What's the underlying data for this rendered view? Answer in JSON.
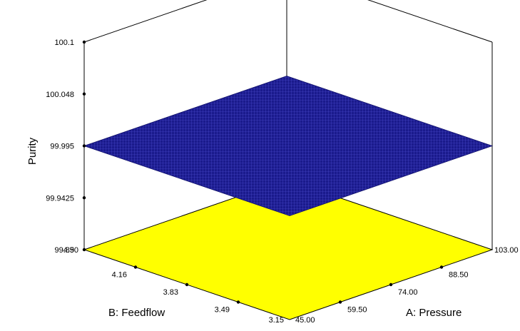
{
  "chart_data": {
    "type": "surface3d",
    "title": "",
    "zlabel": "Purity",
    "xlabel": "A: Pressure",
    "ylabel": "B: Feedflow",
    "x_ticks": [
      "45.00",
      "59.50",
      "74.00",
      "88.50",
      "103.00"
    ],
    "y_ticks": [
      "3.15",
      "3.49",
      "3.83",
      "4.16",
      "4.50"
    ],
    "z_ticks": [
      "99.89",
      "99.9425",
      "99.995",
      "100.048",
      "100.1"
    ],
    "xlim": [
      45.0,
      103.0
    ],
    "ylim": [
      3.15,
      4.5
    ],
    "zlim": [
      99.89,
      100.1
    ],
    "surface": {
      "x": [
        45.0,
        103.0
      ],
      "y": [
        3.15,
        4.5
      ],
      "z": [
        [
          99.995,
          99.995
        ],
        [
          99.995,
          99.995
        ]
      ]
    },
    "colors": {
      "surface": "#1a1a8c",
      "surface_mesh": "#4a4aff",
      "floor": "#ffff00"
    }
  }
}
